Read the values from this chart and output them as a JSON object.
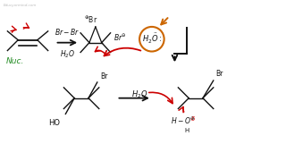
{
  "bg_color": "#ffffff",
  "red_color": "#cc0000",
  "green_color": "#228B22",
  "orange_color": "#cc6600",
  "black_color": "#111111",
  "watermark": "Educyormind.com",
  "figw": 3.2,
  "figh": 1.8,
  "dpi": 100,
  "xlim": [
    0,
    16
  ],
  "ylim": [
    0,
    9
  ]
}
